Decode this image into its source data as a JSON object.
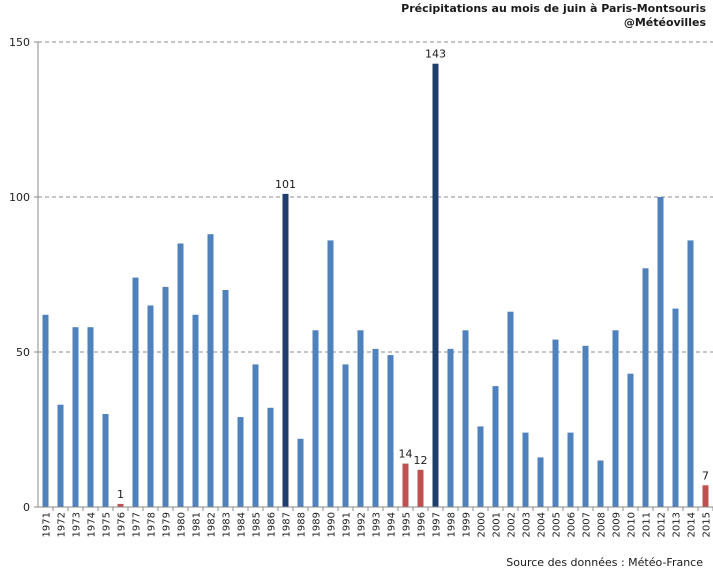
{
  "chart_data": {
    "type": "bar",
    "title": "Précipitations au mois de juin à Paris-Montsouris",
    "subtitle": "@Météovilles",
    "source": "Source des données : Météo-France",
    "xlabel": "",
    "ylabel": "",
    "ylim": [
      0,
      150
    ],
    "yticks": [
      0,
      50,
      100,
      150
    ],
    "grid": true,
    "categories": [
      "1971",
      "1972",
      "1973",
      "1974",
      "1975",
      "1976",
      "1977",
      "1978",
      "1979",
      "1980",
      "1981",
      "1982",
      "1983",
      "1984",
      "1985",
      "1986",
      "1987",
      "1988",
      "1989",
      "1990",
      "1991",
      "1992",
      "1993",
      "1994",
      "1995",
      "1996",
      "1997",
      "1998",
      "1999",
      "2000",
      "2001",
      "2002",
      "2003",
      "2004",
      "2005",
      "2006",
      "2007",
      "2008",
      "2009",
      "2010",
      "2011",
      "2012",
      "2013",
      "2014",
      "2015"
    ],
    "values": [
      62,
      33,
      58,
      58,
      30,
      1,
      74,
      65,
      71,
      85,
      62,
      88,
      70,
      29,
      46,
      32,
      101,
      22,
      57,
      86,
      46,
      57,
      51,
      49,
      14,
      12,
      143,
      51,
      57,
      26,
      39,
      63,
      24,
      16,
      54,
      24,
      52,
      15,
      57,
      43,
      77,
      100,
      64,
      86,
      7
    ],
    "colors": {
      "normal": "#4f81bd",
      "highlight_high": "#1f3e6e",
      "highlight_low": "#c0504d"
    },
    "highlight_high_years": [
      "1987",
      "1997"
    ],
    "highlight_low_years": [
      "1976",
      "1995",
      "1996",
      "2015"
    ],
    "data_labels": [
      {
        "category": "1976",
        "text": "1"
      },
      {
        "category": "1987",
        "text": "101"
      },
      {
        "category": "1995",
        "text": "14"
      },
      {
        "category": "1996",
        "text": "12"
      },
      {
        "category": "1997",
        "text": "143"
      },
      {
        "category": "2015",
        "text": "7"
      }
    ]
  }
}
